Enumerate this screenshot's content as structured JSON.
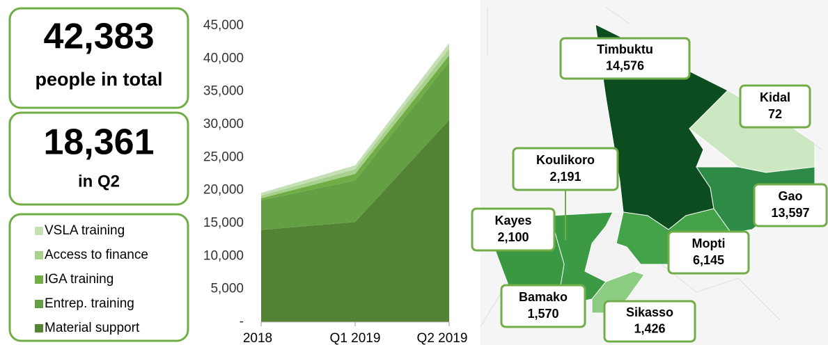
{
  "stats": [
    {
      "value": "42,383",
      "label": "people in total"
    },
    {
      "value": "18,361",
      "label": "in Q2"
    }
  ],
  "chart_data": {
    "type": "area",
    "categories": [
      "2018",
      "Q1 2019",
      "Q2 2019"
    ],
    "series": [
      {
        "name": "VSLA training",
        "color": "#c5e0b4",
        "values": [
          400,
          600,
          883
        ]
      },
      {
        "name": "Access to finance",
        "color": "#a9d18e",
        "values": [
          400,
          700,
          1000
        ]
      },
      {
        "name": "IGA training",
        "color": "#70ad47",
        "values": [
          300,
          1000,
          1000
        ]
      },
      {
        "name": "Entrep. training",
        "color": "#62a043",
        "values": [
          4500,
          6300,
          8800
        ]
      },
      {
        "name": "Material support",
        "color": "#548235",
        "values": [
          14000,
          15200,
          30700
        ]
      }
    ],
    "ylim": [
      0,
      45000
    ],
    "yticks": [
      {
        "value": 0,
        "label": "-"
      },
      {
        "value": 5000,
        "label": "5,000"
      },
      {
        "value": 10000,
        "label": "10,000"
      },
      {
        "value": 15000,
        "label": "15,000"
      },
      {
        "value": 20000,
        "label": "20,000"
      },
      {
        "value": 25000,
        "label": "25,000"
      },
      {
        "value": 30000,
        "label": "30,000"
      },
      {
        "value": 35000,
        "label": "35,000"
      },
      {
        "value": 40000,
        "label": "40,000"
      },
      {
        "value": 45000,
        "label": "45,000"
      }
    ],
    "stacked": true
  },
  "map": {
    "regions": [
      {
        "name": "Timbuktu",
        "value": "14,576",
        "color": "#0b4d1f"
      },
      {
        "name": "Kidal",
        "value": "72",
        "color": "#cbe8c3"
      },
      {
        "name": "Koulikoro",
        "value": "2,191",
        "color": "#3c9a45"
      },
      {
        "name": "Gao",
        "value": "13,597",
        "color": "#2e8a47"
      },
      {
        "name": "Kayes",
        "value": "2,100",
        "color": "#3a9843"
      },
      {
        "name": "Mopti",
        "value": "6,145",
        "color": "#44a248"
      },
      {
        "name": "Bamako",
        "value": "1,570",
        "color": "#5fb35a"
      },
      {
        "name": "Sikasso",
        "value": "1,426",
        "color": "#8ccd83"
      }
    ]
  }
}
